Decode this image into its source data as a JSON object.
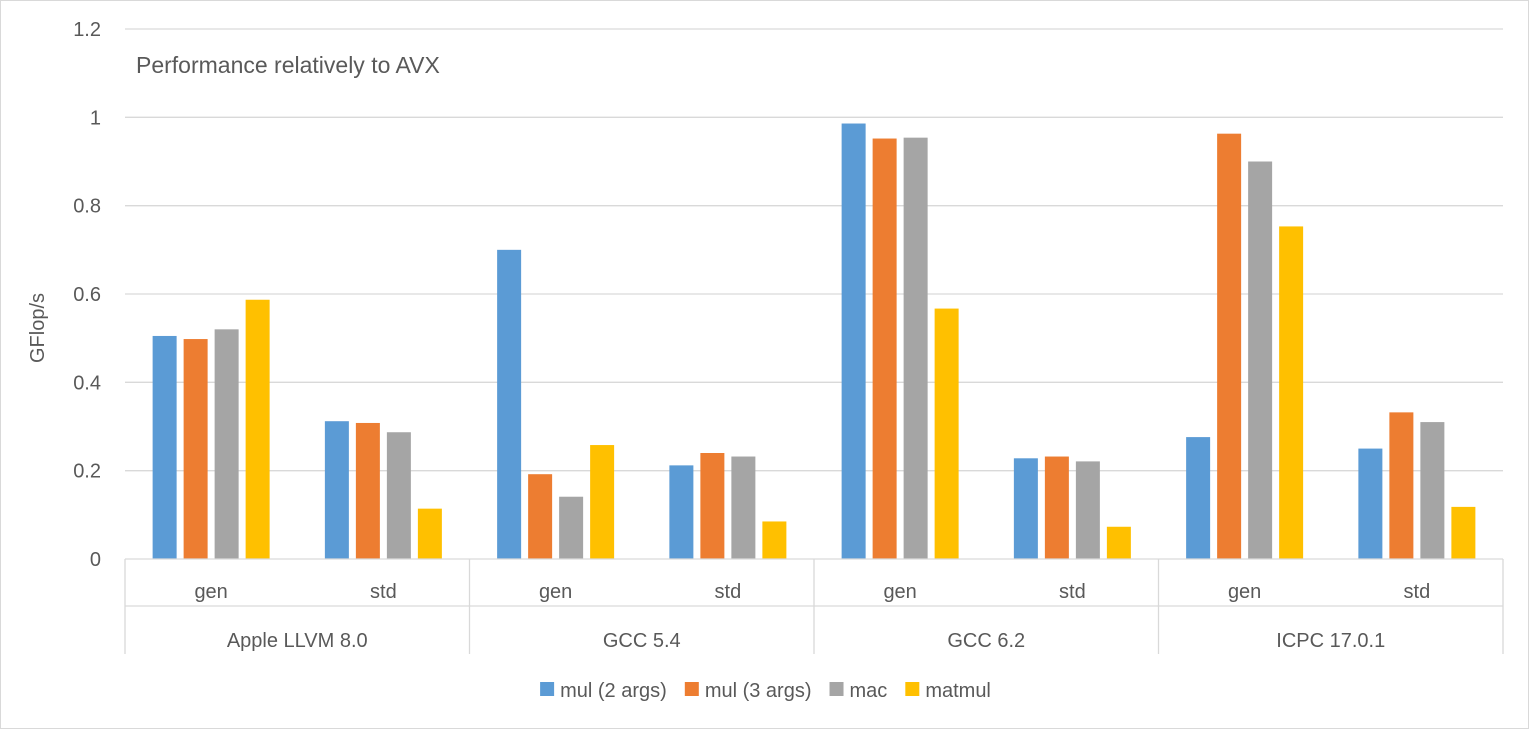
{
  "chart_data": {
    "type": "bar",
    "title": "Performance relatively to AVX",
    "ylabel": "GFlop/s",
    "xlabel": "",
    "ylim": [
      0,
      1.2
    ],
    "yticks": [
      0,
      0.2,
      0.4,
      0.6,
      0.8,
      1,
      1.2
    ],
    "ytick_labels": [
      "0",
      "0.2",
      "0.4",
      "0.6",
      "0.8",
      "1",
      "1.2"
    ],
    "grid": true,
    "legend_position": "bottom",
    "groups": [
      {
        "name": "Apple LLVM 8.0",
        "categories": [
          "gen",
          "std"
        ]
      },
      {
        "name": "GCC 5.4",
        "categories": [
          "gen",
          "std"
        ]
      },
      {
        "name": "GCC 6.2",
        "categories": [
          "gen",
          "std"
        ]
      },
      {
        "name": "ICPC 17.0.1",
        "categories": [
          "gen",
          "std"
        ]
      }
    ],
    "categories": [
      "gen",
      "std",
      "gen",
      "std",
      "gen",
      "std",
      "gen",
      "std"
    ],
    "series": [
      {
        "name": "mul (2 args)",
        "color": "#5b9bd5",
        "values": [
          0.505,
          0.312,
          0.7,
          0.212,
          0.986,
          0.228,
          0.276,
          0.25
        ]
      },
      {
        "name": "mul (3 args)",
        "color": "#ed7d31",
        "values": [
          0.498,
          0.308,
          0.192,
          0.24,
          0.952,
          0.232,
          0.963,
          0.332
        ]
      },
      {
        "name": "mac",
        "color": "#a5a5a5",
        "values": [
          0.52,
          0.287,
          0.141,
          0.232,
          0.954,
          0.221,
          0.9,
          0.31
        ]
      },
      {
        "name": "matmul",
        "color": "#ffc000",
        "values": [
          0.587,
          0.114,
          0.258,
          0.085,
          0.567,
          0.073,
          0.753,
          0.118
        ]
      }
    ]
  }
}
